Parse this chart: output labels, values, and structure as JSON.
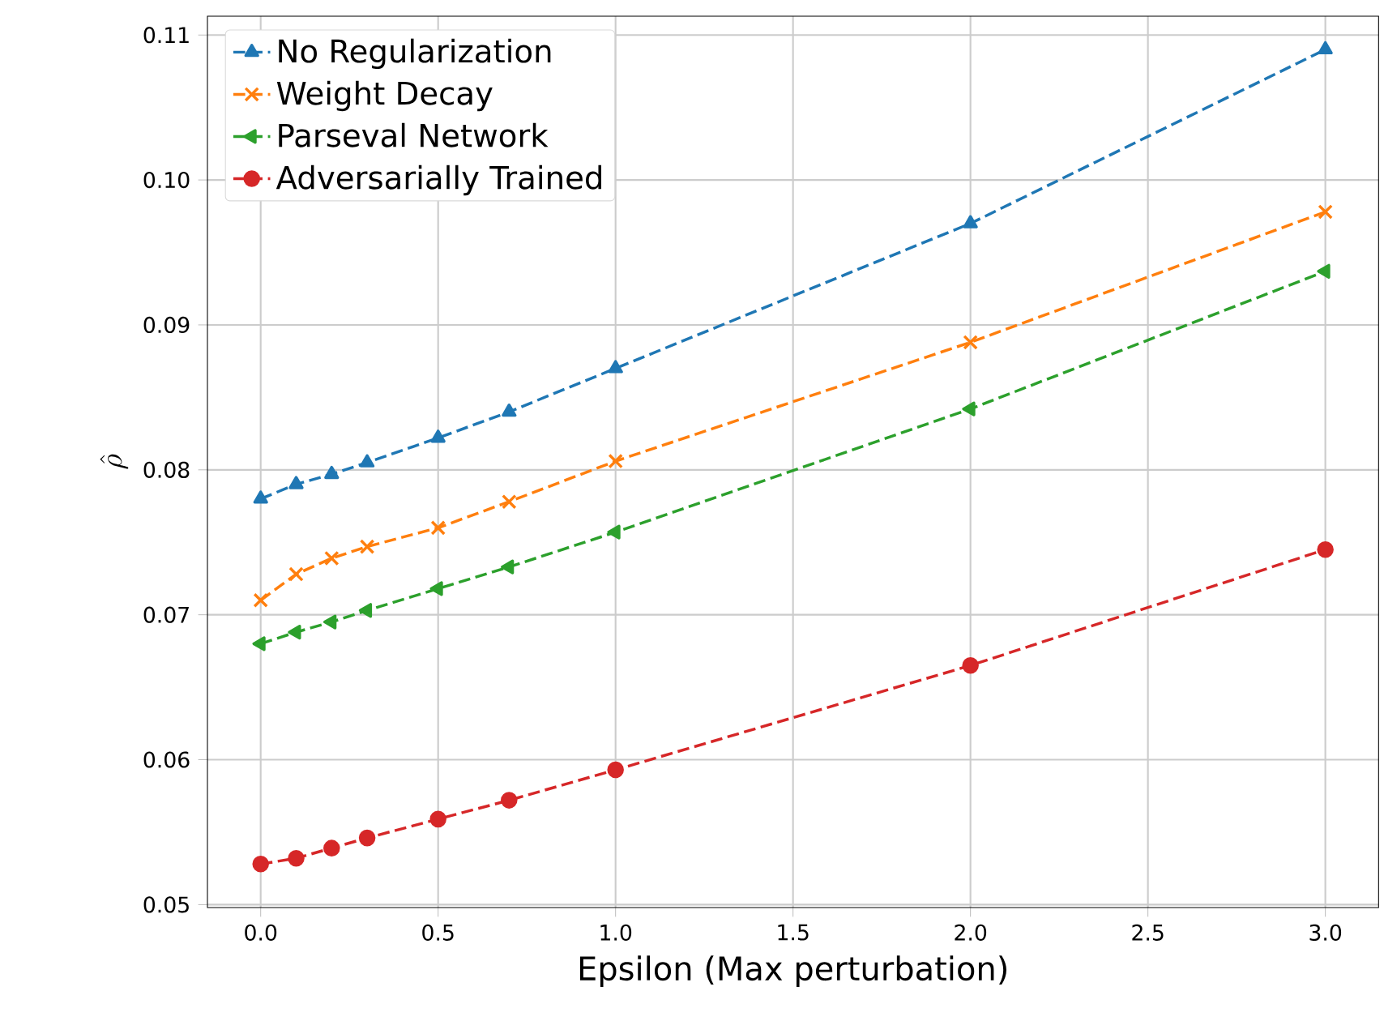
{
  "chart_data": {
    "type": "line",
    "xlabel": "Epsilon (Max perturbation)",
    "ylabel": "\\hat{\\rho}",
    "x": [
      0,
      0.1,
      0.2,
      0.3,
      0.5,
      0.7,
      1.0,
      2.0,
      3.0
    ],
    "series": [
      {
        "name": "No Regularization",
        "color": "#1f77b4",
        "marker": "triangle",
        "values": [
          0.078,
          0.079,
          0.0797,
          0.0805,
          0.0822,
          0.084,
          0.087,
          0.097,
          0.109
        ]
      },
      {
        "name": "Weight Decay",
        "color": "#ff7f0e",
        "marker": "cross",
        "values": [
          0.071,
          0.0728,
          0.0739,
          0.0747,
          0.076,
          0.0778,
          0.0806,
          0.0888,
          0.0978
        ]
      },
      {
        "name": "Parseval Network",
        "color": "#2ca02c",
        "marker": "triangle-left",
        "values": [
          0.068,
          0.0688,
          0.0695,
          0.0703,
          0.0718,
          0.0733,
          0.0757,
          0.0842,
          0.0937
        ]
      },
      {
        "name": "Adversarially Trained",
        "color": "#d62728",
        "marker": "circle",
        "values": [
          0.0528,
          0.0532,
          0.0539,
          0.0546,
          0.0559,
          0.0572,
          0.0593,
          0.0665,
          0.0745
        ]
      }
    ],
    "xlim": [
      -0.15,
      3.15
    ],
    "ylim": [
      0.0498,
      0.1113
    ],
    "xticks": [
      {
        "value": 0,
        "label": "0.0"
      },
      0.5,
      {
        "value": 1,
        "label": "1.0"
      },
      1.5,
      {
        "value": 2,
        "label": "2.0"
      },
      2.5,
      {
        "value": 3,
        "label": "3.0"
      }
    ],
    "yticks": [
      0.05,
      0.06,
      0.07,
      0.08,
      0.09,
      {
        "value": 0.1,
        "label": "0.10"
      },
      0.11
    ],
    "grid": true,
    "legend": "top left",
    "line_style": "dashed"
  }
}
